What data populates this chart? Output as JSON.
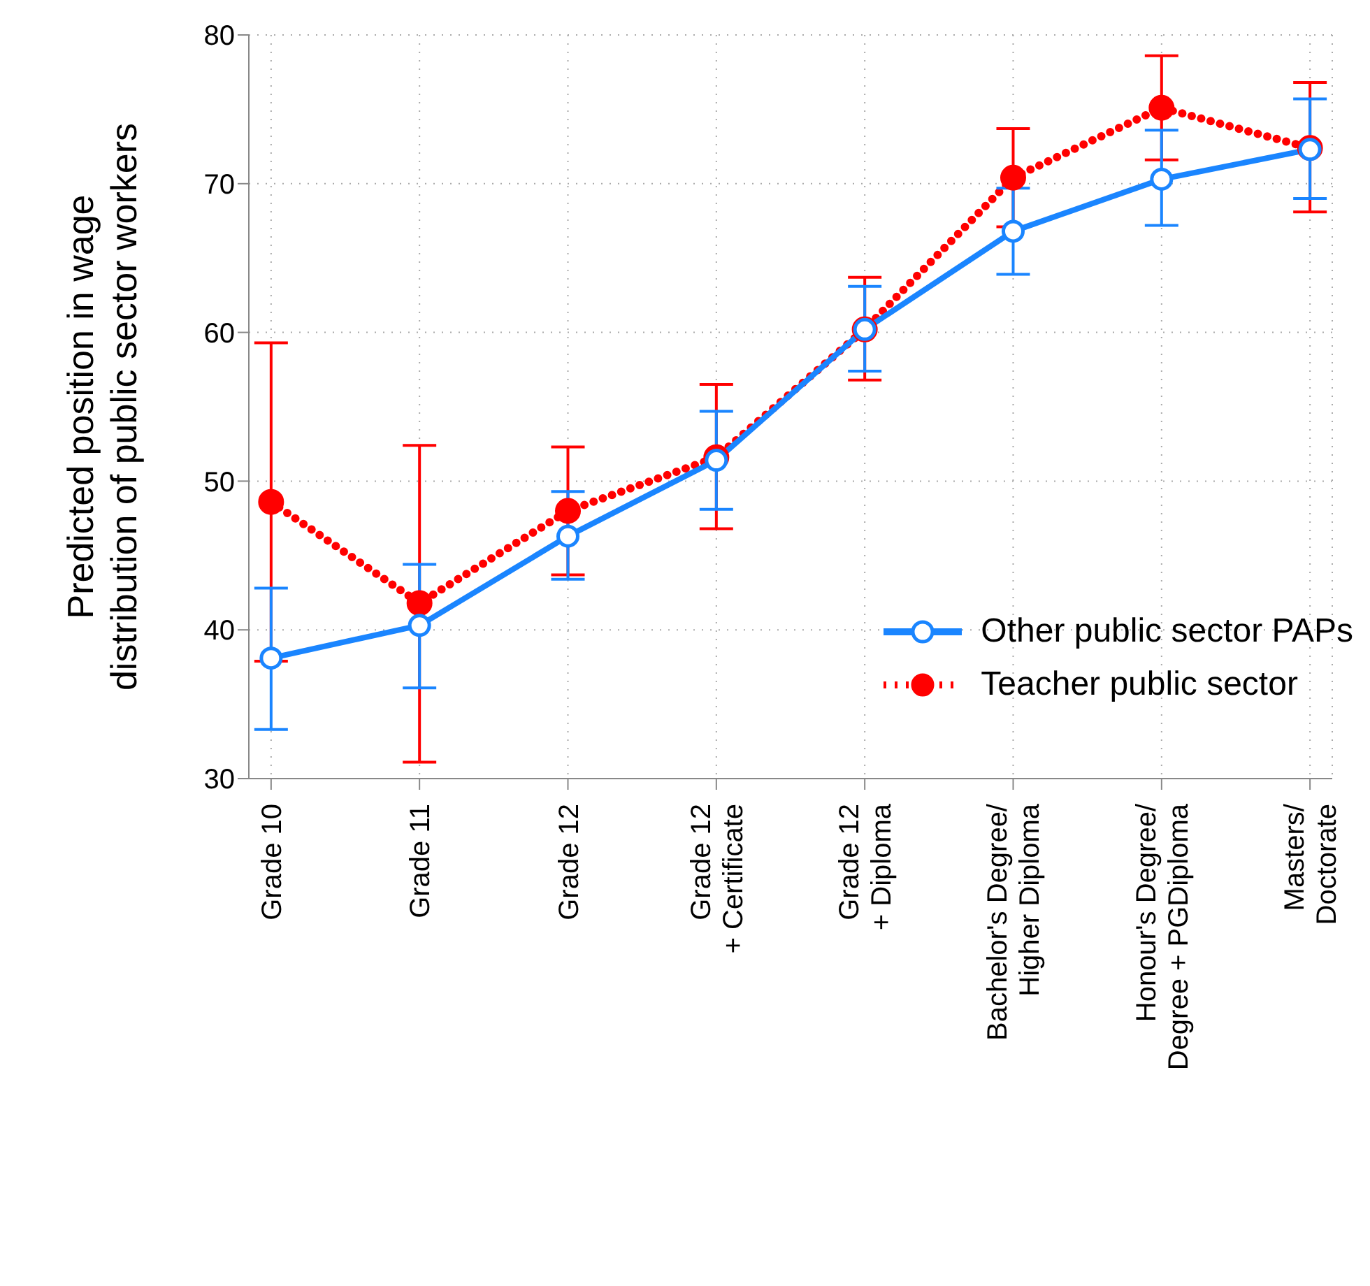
{
  "chart_data": {
    "type": "line",
    "ylabel": "Predicted position in wage\ndistribution of public sector workers",
    "categories": [
      "Grade 10",
      "Grade 11",
      "Grade 12",
      "Grade 12\n+ Certificate",
      "Grade 12\n+ Diploma",
      "Bachelor's Degree/\nHigher Diploma",
      "Honour's Degree/\nDegree + PGDiploma",
      "Masters/\nDoctorate"
    ],
    "series": [
      {
        "name": "Other public sector PAPs",
        "color": "#1a85ff",
        "marker": "circle",
        "line_style": "solid",
        "values": [
          38.1,
          40.3,
          46.3,
          51.4,
          60.2,
          66.8,
          70.3,
          72.3
        ],
        "errors": [
          [
            33.3,
            42.8
          ],
          [
            36.1,
            44.4
          ],
          [
            43.4,
            49.3
          ],
          [
            48.1,
            54.7
          ],
          [
            57.4,
            63.1
          ],
          [
            63.9,
            69.7
          ],
          [
            67.2,
            73.6
          ],
          [
            69.0,
            75.7
          ]
        ]
      },
      {
        "name": "Teacher public sector",
        "color": "#ff0000",
        "marker": "circle",
        "line_style": "dotted",
        "values": [
          48.6,
          41.8,
          48.0,
          51.6,
          60.2,
          70.4,
          75.1,
          72.4
        ],
        "errors": [
          [
            37.9,
            59.3
          ],
          [
            31.1,
            52.4
          ],
          [
            43.7,
            52.3
          ],
          [
            46.8,
            56.5
          ],
          [
            56.8,
            63.7
          ],
          [
            67.1,
            73.7
          ],
          [
            71.6,
            78.6
          ],
          [
            68.1,
            76.8
          ]
        ]
      }
    ],
    "ylim": [
      30,
      80
    ],
    "yticks": [
      30,
      40,
      50,
      60,
      70,
      80
    ],
    "grid": true,
    "legend": "right"
  }
}
